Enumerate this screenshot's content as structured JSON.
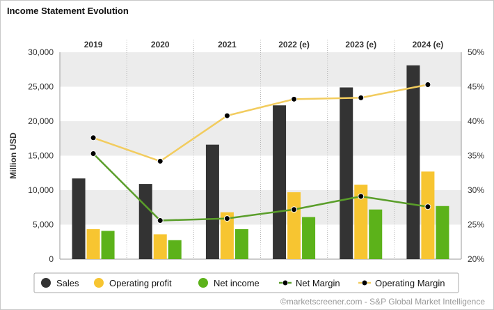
{
  "title": "Income Statement Evolution",
  "credit": "©marketscreener.com - S&P Global Market Intelligence",
  "chart_data": {
    "type": "bar",
    "title": "Income Statement Evolution",
    "categories": [
      "2019",
      "2020",
      "2021",
      "2022 (e)",
      "2023 (e)",
      "2024 (e)"
    ],
    "ylabel": "Million USD",
    "ylim": [
      0,
      30000
    ],
    "yticks": [
      "0",
      "5,000",
      "10,000",
      "15,000",
      "20,000",
      "25,000",
      "30,000"
    ],
    "y2lim": [
      20,
      50
    ],
    "y2ticks": [
      "20%",
      "25%",
      "30%",
      "35%",
      "40%",
      "45%",
      "50%"
    ],
    "series": [
      {
        "name": "Sales",
        "type": "bar",
        "color": "#333333",
        "values": [
          11700,
          10900,
          16600,
          22300,
          24900,
          28100
        ]
      },
      {
        "name": "Operating profit",
        "type": "bar",
        "color": "#f7c531",
        "values": [
          4350,
          3600,
          6800,
          9700,
          10800,
          12700
        ]
      },
      {
        "name": "Net income",
        "type": "bar",
        "color": "#5cb21a",
        "values": [
          4100,
          2750,
          4350,
          6100,
          7200,
          7700
        ]
      },
      {
        "name": "Net Margin",
        "type": "line",
        "axis": "right",
        "color": "#5a9e2a",
        "values": [
          35.3,
          25.6,
          25.9,
          27.2,
          29.1,
          27.6
        ]
      },
      {
        "name": "Operating Margin",
        "type": "line",
        "axis": "right",
        "color": "#f2cc5e",
        "values": [
          37.6,
          34.2,
          40.8,
          43.2,
          43.4,
          45.3
        ]
      }
    ],
    "legend": [
      "Sales",
      "Operating profit",
      "Net income",
      "Net Margin",
      "Operating Margin"
    ],
    "legend_position": "bottom"
  }
}
